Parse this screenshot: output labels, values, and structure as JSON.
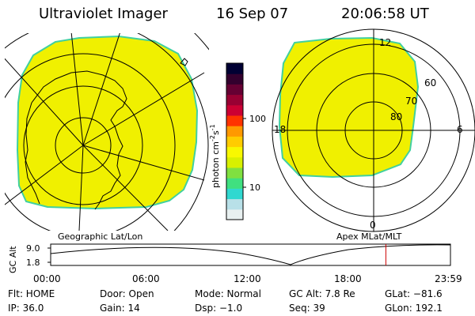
{
  "header": {
    "instrument": "Ultraviolet Imager",
    "date": "16 Sep 07",
    "time": "20:06:58 UT"
  },
  "geo_panel": {
    "label": "Geographic Lat/Lon"
  },
  "mag_panel": {
    "label": "Apex MLat/MLT",
    "mlt_labels": {
      "top": "12",
      "bottom": "0",
      "left": "18",
      "right": "6"
    },
    "mlat_labels": [
      "80",
      "70",
      "60"
    ]
  },
  "colorbar": {
    "axis_title": "photon cm",
    "axis_exp1": "-2",
    "axis_mid": "s",
    "axis_exp2": "-1",
    "ticks": [
      "100",
      "10"
    ],
    "colors": [
      "#e8f0f0",
      "#b8e0e8",
      "#30d8d0",
      "#40e080",
      "#80e040",
      "#d8f000",
      "#f8f800",
      "#ffcc00",
      "#ff9900",
      "#ff3300",
      "#cc0033",
      "#990033",
      "#660033",
      "#33002e",
      "#000033"
    ]
  },
  "altitude_plot": {
    "ylabel": "GC Alt",
    "yticks": [
      "9.0",
      "1.8"
    ],
    "xticks": [
      "00:00",
      "06:00",
      "12:00",
      "18:00",
      "23:59"
    ],
    "current_time_hours": 20.12
  },
  "status": {
    "filter": "Flt: HOME",
    "door": "Door: Open",
    "mode": "Mode: Normal",
    "gc_alt": "GC Alt: 7.8 Re",
    "glat": "GLat: −81.6",
    "ip": "IP: 36.0",
    "gain": "Gain: 14",
    "dsp": "Dsp:   −1.0",
    "seq": "Seq: 39",
    "glon": "GLon: 192.1"
  },
  "colors": {
    "image_fill": "#f0f000",
    "image_edge": "#40d0a0",
    "timeline_marker": "#cc0000"
  }
}
